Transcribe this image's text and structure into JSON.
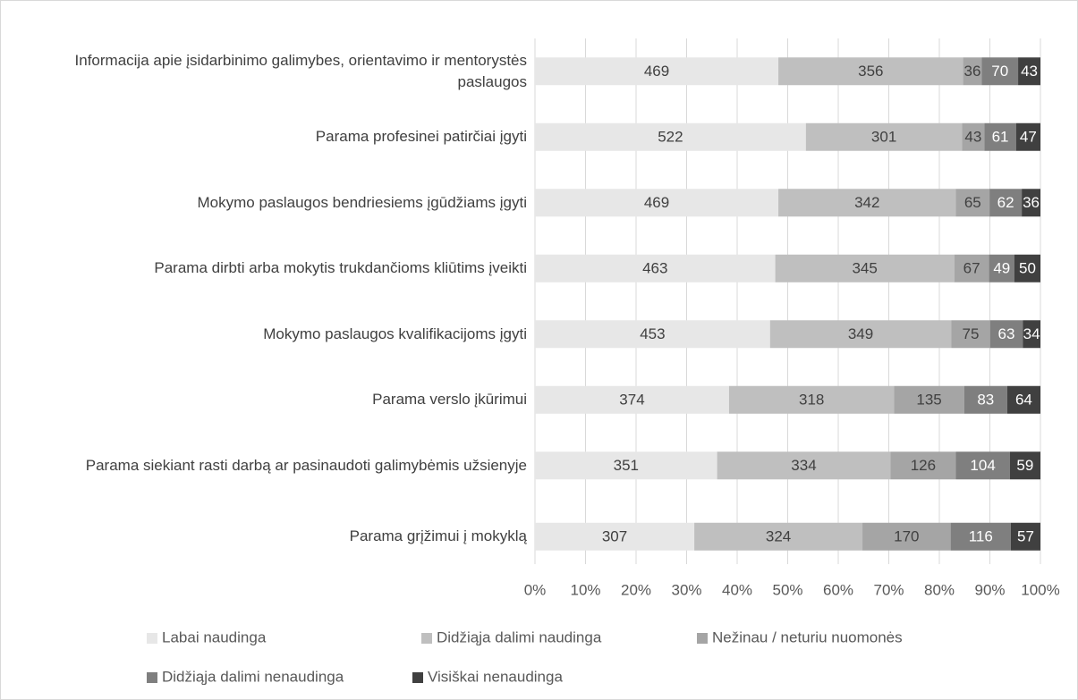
{
  "chart_data": {
    "type": "bar",
    "orientation": "horizontal",
    "stacked": "percent",
    "categories": [
      "Informacija apie įsidarbinimo galimybes, orientavimo ir mentorystės paslaugos",
      "Parama profesinei patirčiai įgyti",
      "Mokymo paslaugos bendriesiems įgūdžiams įgyti",
      "Parama dirbti arba mokytis trukdančioms kliūtims įveikti",
      "Mokymo paslaugos kvalifikacijoms įgyti",
      "Parama verslo įkūrimui",
      "Parama siekiant rasti darbą ar pasinaudoti galimybėmis užsienyje",
      "Parama grįžimui į mokyklą"
    ],
    "series": [
      {
        "name": "Labai naudinga",
        "color": "#e7e7e7",
        "values": [
          469,
          522,
          469,
          463,
          453,
          374,
          351,
          307
        ]
      },
      {
        "name": "Didžiąja dalimi naudinga",
        "color": "#bfbfbf",
        "values": [
          356,
          301,
          342,
          345,
          349,
          318,
          334,
          324
        ]
      },
      {
        "name": "Nežinau / neturiu nuomonės",
        "color": "#a5a5a5",
        "values": [
          36,
          43,
          65,
          67,
          75,
          135,
          126,
          170
        ]
      },
      {
        "name": "Didžiąja dalimi nenaudinga",
        "color": "#7f7f7f",
        "values": [
          70,
          61,
          62,
          49,
          63,
          83,
          104,
          116
        ]
      },
      {
        "name": "Visiškai nenaudinga",
        "color": "#404040",
        "values": [
          43,
          47,
          36,
          50,
          34,
          64,
          59,
          57
        ]
      }
    ],
    "xlim": [
      0,
      100
    ],
    "xticks": [
      {
        "value": 0,
        "label": "0%"
      },
      {
        "value": 10,
        "label": "10%"
      },
      {
        "value": 20,
        "label": "20%"
      },
      {
        "value": 30,
        "label": "30%"
      },
      {
        "value": 40,
        "label": "40%"
      },
      {
        "value": 50,
        "label": "50%"
      },
      {
        "value": 60,
        "label": "60%"
      },
      {
        "value": 70,
        "label": "70%"
      },
      {
        "value": 80,
        "label": "80%"
      },
      {
        "value": 90,
        "label": "90%"
      },
      {
        "value": 100,
        "label": "100%"
      }
    ],
    "grid": true,
    "legend": "bottom"
  }
}
